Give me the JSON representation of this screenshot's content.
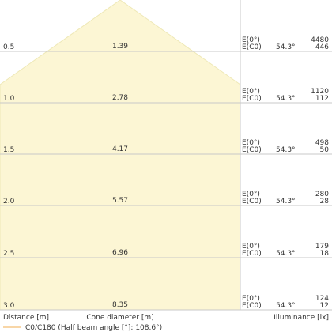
{
  "diagram": {
    "beam_fill_color": "#fcf6d4",
    "beam_stroke_color": "#eee8b6",
    "grid_color": "#c8c8c8",
    "label_e0": "E(0°)",
    "label_ec0": "E(C0)",
    "angle_label": "54.3°",
    "rows": [
      {
        "distance": "0.5",
        "diameter": "1.39",
        "e0": "4480",
        "ec0": "446"
      },
      {
        "distance": "1.0",
        "diameter": "2.78",
        "e0": "1120",
        "ec0": "112"
      },
      {
        "distance": "1.5",
        "diameter": "4.17",
        "e0": "498",
        "ec0": "50"
      },
      {
        "distance": "2.0",
        "diameter": "5.57",
        "e0": "280",
        "ec0": "28"
      },
      {
        "distance": "2.5",
        "diameter": "6.96",
        "e0": "179",
        "ec0": "18"
      },
      {
        "distance": "3.0",
        "diameter": "8.35",
        "e0": "124",
        "ec0": "12"
      }
    ]
  },
  "footer": {
    "distance_label": "Distance [m]",
    "cone_label": "Cone diameter [m]",
    "illuminance_label": "Illuminance [lx]"
  },
  "legend": {
    "line_color": "#f5c98a",
    "text": "C0/C180 (Half beam angle [°]: 108.6°)"
  }
}
